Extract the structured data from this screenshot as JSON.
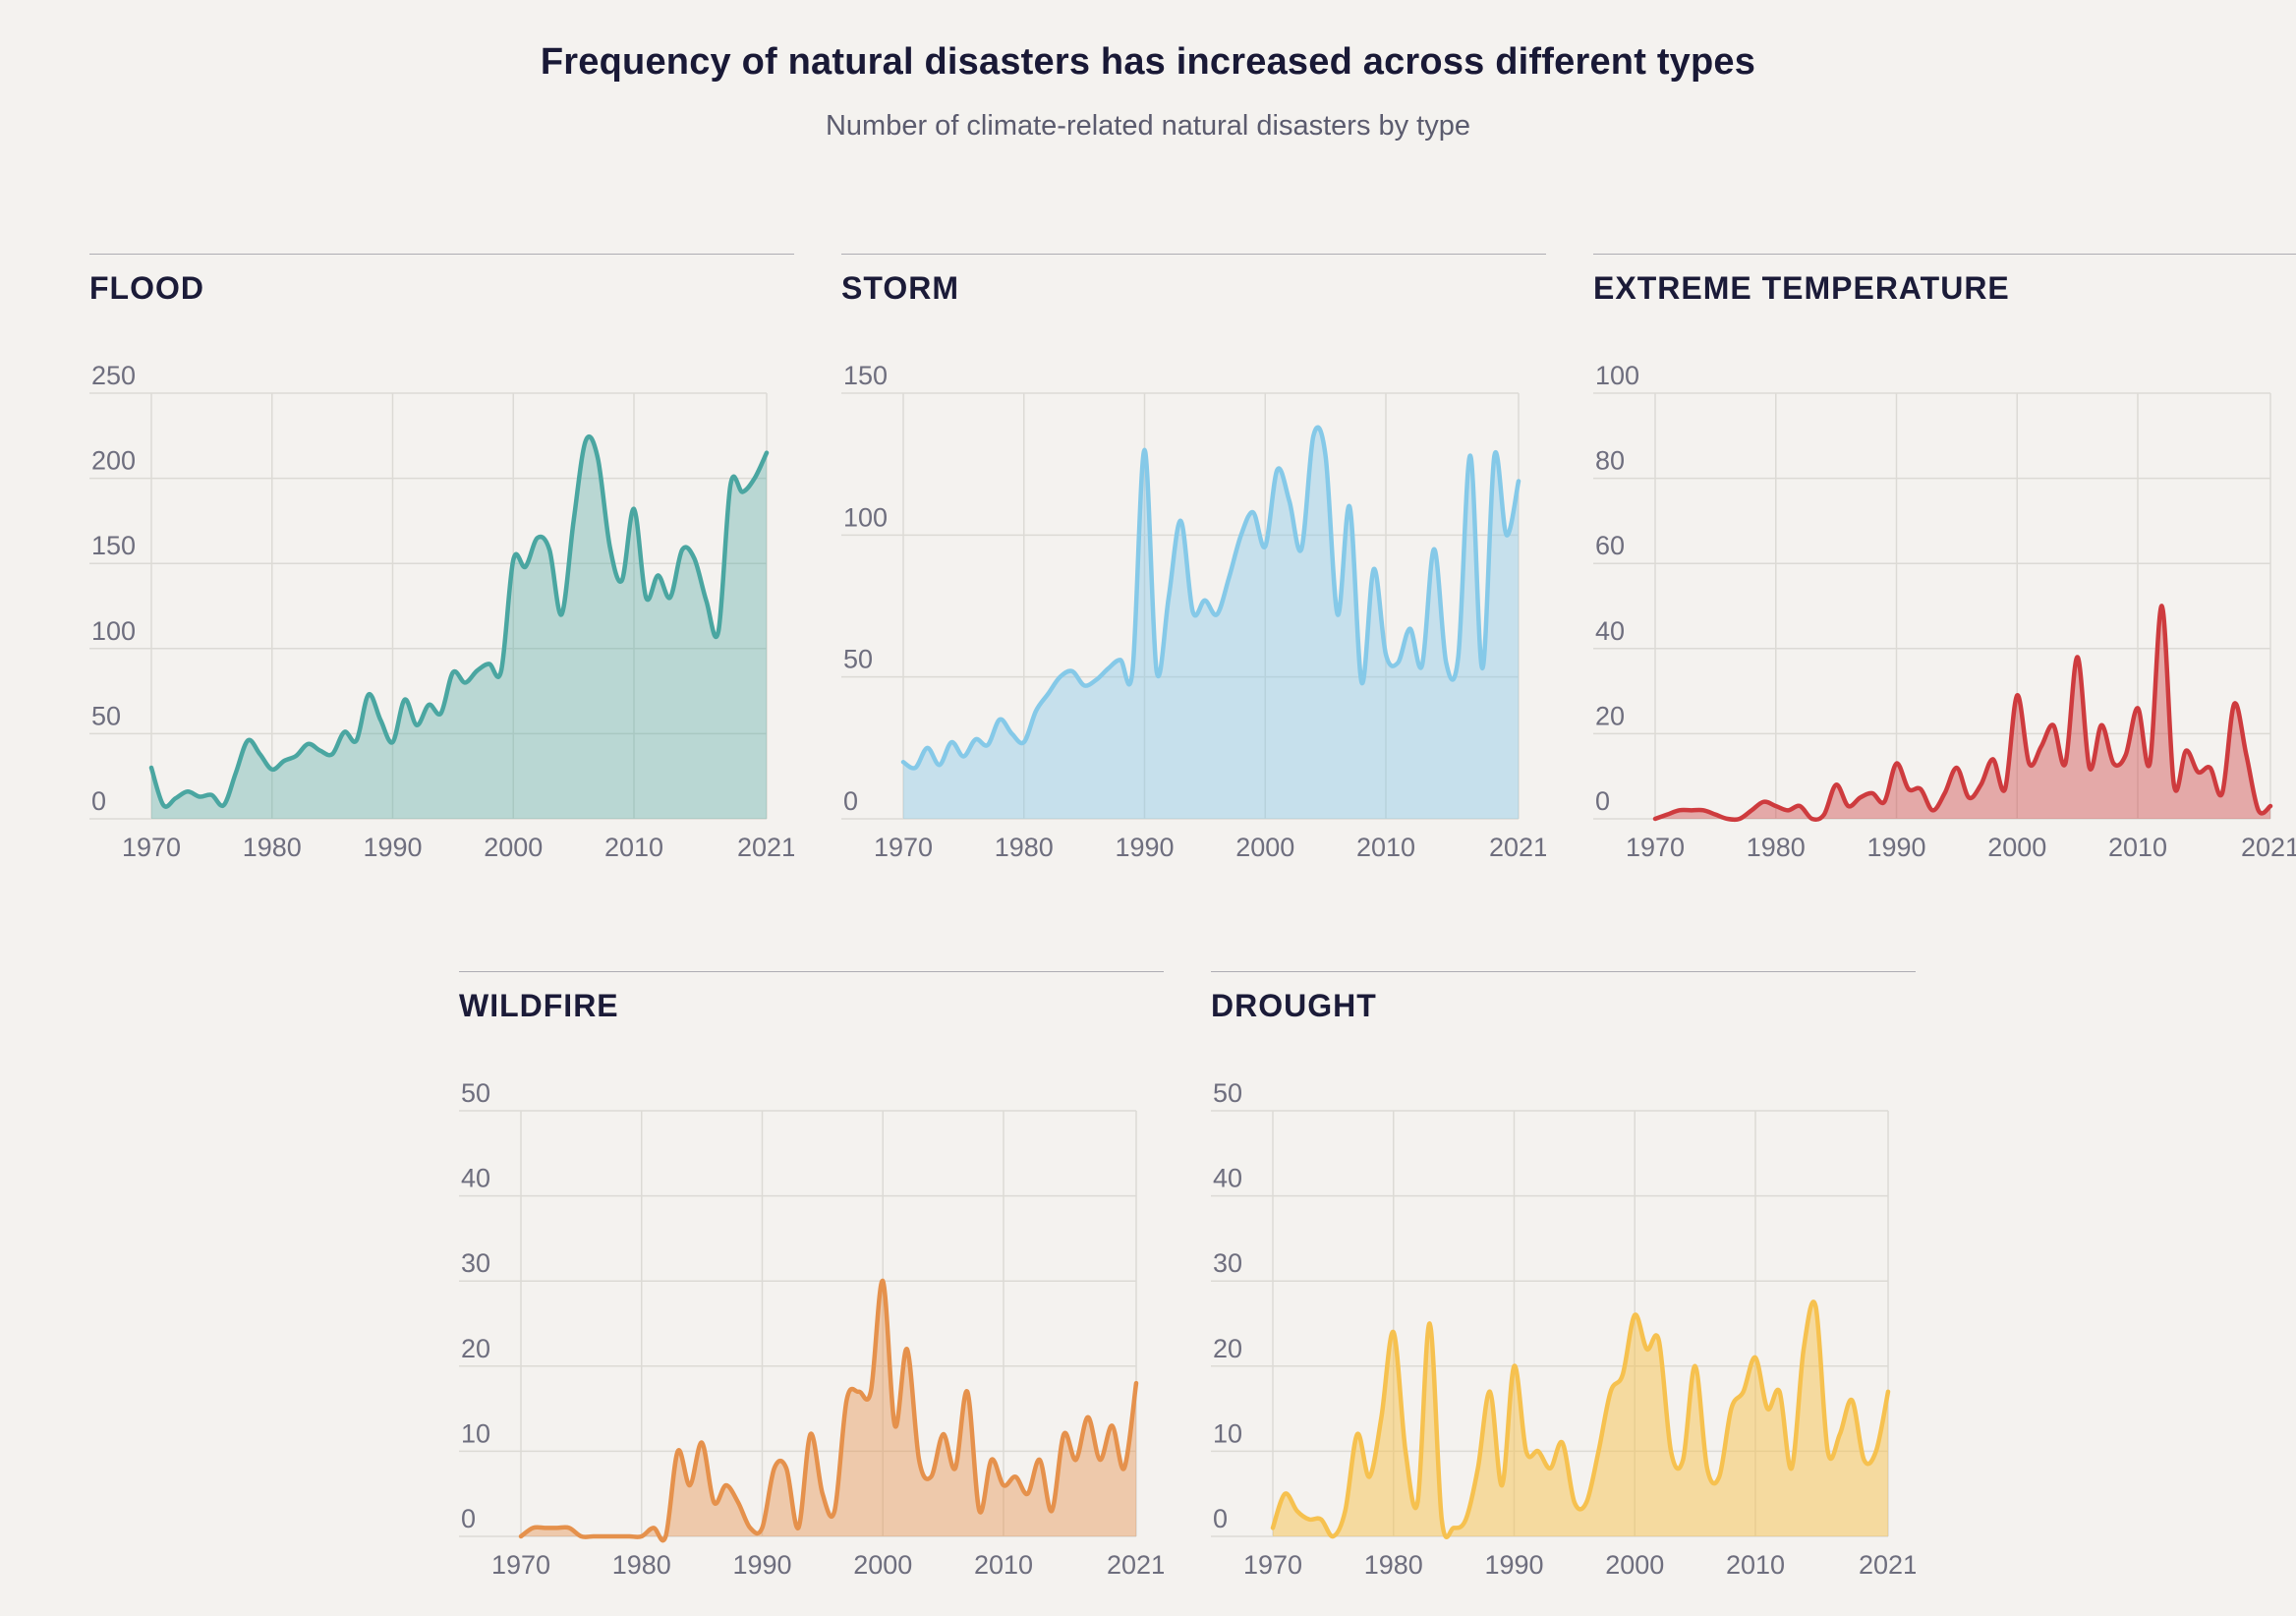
{
  "header": {
    "title": "Frequency of natural disasters has increased across different types",
    "subtitle": "Number of climate-related natural disasters by type"
  },
  "chart_data": [
    {
      "type": "area",
      "title": "FLOOD",
      "line_color": "#4AA6A1",
      "fill_color": "rgba(74,166,161,0.35)",
      "x_range": [
        1970,
        2021
      ],
      "x_step": 1,
      "xticks": [
        1970,
        1980,
        1990,
        2000,
        2010,
        2021
      ],
      "ylim": [
        0,
        250
      ],
      "yticks": [
        0,
        50,
        100,
        150,
        200,
        250
      ],
      "grid": true,
      "values": [
        30,
        8,
        12,
        16,
        13,
        14,
        8,
        27,
        46,
        38,
        29,
        34,
        37,
        44,
        40,
        38,
        51,
        46,
        73,
        58,
        45,
        70,
        55,
        67,
        62,
        86,
        80,
        87,
        91,
        87,
        152,
        148,
        165,
        158,
        120,
        175,
        222,
        212,
        160,
        140,
        182,
        130,
        143,
        130,
        158,
        153,
        128,
        110,
        196,
        192,
        200,
        215
      ]
    },
    {
      "type": "area",
      "title": "STORM",
      "line_color": "#85C9E8",
      "fill_color": "rgba(133,201,232,0.42)",
      "x_range": [
        1970,
        2021
      ],
      "x_step": 1,
      "xticks": [
        1970,
        1980,
        1990,
        2000,
        2010,
        2021
      ],
      "ylim": [
        0,
        150
      ],
      "yticks": [
        0,
        50,
        100,
        150
      ],
      "grid": true,
      "values": [
        20,
        18,
        25,
        19,
        27,
        22,
        28,
        26,
        35,
        30,
        27,
        38,
        44,
        50,
        52,
        47,
        49,
        53,
        56,
        52,
        130,
        52,
        78,
        105,
        73,
        77,
        72,
        85,
        100,
        108,
        96,
        123,
        112,
        95,
        135,
        128,
        72,
        110,
        48,
        88,
        58,
        55,
        67,
        54,
        95,
        55,
        57,
        128,
        53,
        128,
        100,
        119
      ]
    },
    {
      "type": "area",
      "title": "EXTREME TEMPERATURE",
      "line_color": "#CE3B3E",
      "fill_color": "rgba(206,59,62,0.40)",
      "x_range": [
        1970,
        2021
      ],
      "x_step": 1,
      "xticks": [
        1970,
        1980,
        1990,
        2000,
        2010,
        2021
      ],
      "ylim": [
        0,
        100
      ],
      "yticks": [
        0,
        20,
        40,
        60,
        80,
        100
      ],
      "grid": true,
      "values": [
        0,
        1,
        2,
        2,
        2,
        1,
        0,
        0,
        2,
        4,
        3,
        2,
        3,
        0,
        1,
        8,
        3,
        5,
        6,
        4,
        13,
        7,
        7,
        2,
        6,
        12,
        5,
        8,
        14,
        7,
        29,
        13,
        17,
        22,
        13,
        38,
        12,
        22,
        13,
        15,
        26,
        13,
        50,
        8,
        16,
        11,
        12,
        6,
        27,
        15,
        2,
        3
      ]
    },
    {
      "type": "area",
      "title": "WILDFIRE",
      "line_color": "#E5914C",
      "fill_color": "rgba(229,145,76,0.42)",
      "x_range": [
        1970,
        2021
      ],
      "x_step": 1,
      "xticks": [
        1970,
        1980,
        1990,
        2000,
        2010,
        2021
      ],
      "ylim": [
        0,
        50
      ],
      "yticks": [
        0,
        10,
        20,
        30,
        40,
        50
      ],
      "grid": true,
      "values": [
        0,
        1,
        1,
        1,
        1,
        0,
        0,
        0,
        0,
        0,
        0,
        1,
        0,
        10,
        6,
        11,
        4,
        6,
        4,
        1,
        1,
        8,
        8,
        1,
        12,
        5,
        3,
        16,
        17,
        17,
        30,
        13,
        22,
        9,
        7,
        12,
        8,
        17,
        3,
        9,
        6,
        7,
        5,
        9,
        3,
        12,
        9,
        14,
        9,
        13,
        8,
        18
      ]
    },
    {
      "type": "area",
      "title": "DROUGHT",
      "line_color": "#F6C14F",
      "fill_color": "rgba(246,193,79,0.50)",
      "x_range": [
        1970,
        2021
      ],
      "x_step": 1,
      "xticks": [
        1970,
        1980,
        1990,
        2000,
        2010,
        2021
      ],
      "ylim": [
        0,
        50
      ],
      "yticks": [
        0,
        10,
        20,
        30,
        40,
        50
      ],
      "grid": true,
      "values": [
        1,
        5,
        3,
        2,
        2,
        0,
        3,
        12,
        7,
        14,
        24,
        10,
        4,
        25,
        2,
        1,
        2,
        8,
        17,
        6,
        20,
        10,
        10,
        8,
        11,
        4,
        4,
        10,
        17,
        19,
        26,
        22,
        23,
        10,
        9,
        20,
        8,
        7,
        15,
        17,
        21,
        15,
        17,
        8,
        22,
        27,
        10,
        12,
        16,
        9,
        10,
        17
      ]
    }
  ]
}
